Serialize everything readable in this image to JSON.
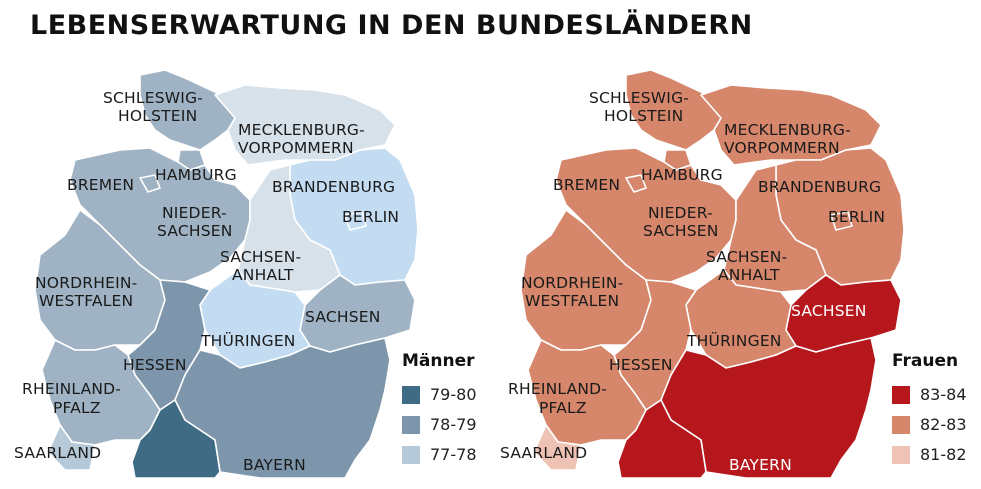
{
  "title": "LEBENSERWARTUNG IN DEN BUNDESLÄNDERN",
  "maps": [
    {
      "legend_title": "Männer",
      "classes": [
        {
          "label": "79-80",
          "color": "#3f6b85"
        },
        {
          "label": "78-79",
          "color": "#7d96ab"
        },
        {
          "label": "77-78",
          "color": "#b6c9d8"
        }
      ],
      "extra_colors": {
        "pale": "#d6e1ea",
        "blue": "#c3dcf1"
      },
      "states": {
        "schleswig_holstein": {
          "l1": "SCHLESWIG-",
          "l2": "HOLSTEIN",
          "class": "78-79"
        },
        "mecklenburg": {
          "l1": "MECKLENBURG-",
          "l2": "VORPOMMERN",
          "class": "77-78"
        },
        "hamburg": {
          "l1": "HAMBURG",
          "class": "78-79"
        },
        "bremen": {
          "l1": "BREMEN",
          "class": "78-79"
        },
        "brandenburg": {
          "l1": "BRANDENBURG",
          "class": "77-78"
        },
        "berlin": {
          "l1": "BERLIN",
          "class": "77-78"
        },
        "niedersachsen": {
          "l1": "NIEDER-",
          "l2": "SACHSEN",
          "class": "78-79"
        },
        "sachsen_anhalt": {
          "l1": "SACHSEN-",
          "l2": "ANHALT",
          "class": "77-78"
        },
        "nrw": {
          "l1": "NORDRHEIN-",
          "l2": "WESTFALEN",
          "class": "78-79"
        },
        "sachsen": {
          "l1": "SACHSEN",
          "class": "78-79"
        },
        "thueringen": {
          "l1": "THÜRINGEN",
          "class": "77-78"
        },
        "hessen": {
          "l1": "HESSEN",
          "class": "78-79"
        },
        "rheinland_pfalz": {
          "l1": "RHEINLAND-",
          "l2": "PFALZ",
          "class": "78-79"
        },
        "saarland": {
          "l1": "SAARLAND",
          "class": "77-78"
        },
        "bayern": {
          "l1": "BAYERN",
          "class": "78-79"
        },
        "baden_wuerttemberg": {
          "class": "79-80"
        }
      }
    },
    {
      "legend_title": "Frauen",
      "classes": [
        {
          "label": "83-84",
          "color": "#b5171c"
        },
        {
          "label": "82-83",
          "color": "#d5866b"
        },
        {
          "label": "81-82",
          "color": "#eec3b5"
        }
      ],
      "states": {
        "schleswig_holstein": {
          "l1": "SCHLESWIG-",
          "l2": "HOLSTEIN",
          "class": "82-83"
        },
        "mecklenburg": {
          "l1": "MECKLENBURG-",
          "l2": "VORPOMMERN",
          "class": "82-83"
        },
        "hamburg": {
          "l1": "HAMBURG",
          "class": "82-83"
        },
        "bremen": {
          "l1": "BREMEN",
          "class": "82-83"
        },
        "brandenburg": {
          "l1": "BRANDENBURG",
          "class": "82-83"
        },
        "berlin": {
          "l1": "BERLIN",
          "class": "82-83"
        },
        "niedersachsen": {
          "l1": "NIEDER-",
          "l2": "SACHSEN",
          "class": "82-83"
        },
        "sachsen_anhalt": {
          "l1": "SACHSEN-",
          "l2": "ANHALT",
          "class": "82-83"
        },
        "nrw": {
          "l1": "NORDRHEIN-",
          "l2": "WESTFALEN",
          "class": "82-83"
        },
        "sachsen": {
          "l1": "SACHSEN",
          "class": "83-84"
        },
        "thueringen": {
          "l1": "THÜRINGEN",
          "class": "82-83"
        },
        "hessen": {
          "l1": "HESSEN",
          "class": "82-83"
        },
        "rheinland_pfalz": {
          "l1": "RHEINLAND-",
          "l2": "PFALZ",
          "class": "82-83"
        },
        "saarland": {
          "l1": "SAARLAND",
          "class": "81-82"
        },
        "bayern": {
          "l1": "BAYERN",
          "class": "83-84"
        },
        "baden_wuerttemberg": {
          "class": "83-84"
        }
      }
    }
  ]
}
